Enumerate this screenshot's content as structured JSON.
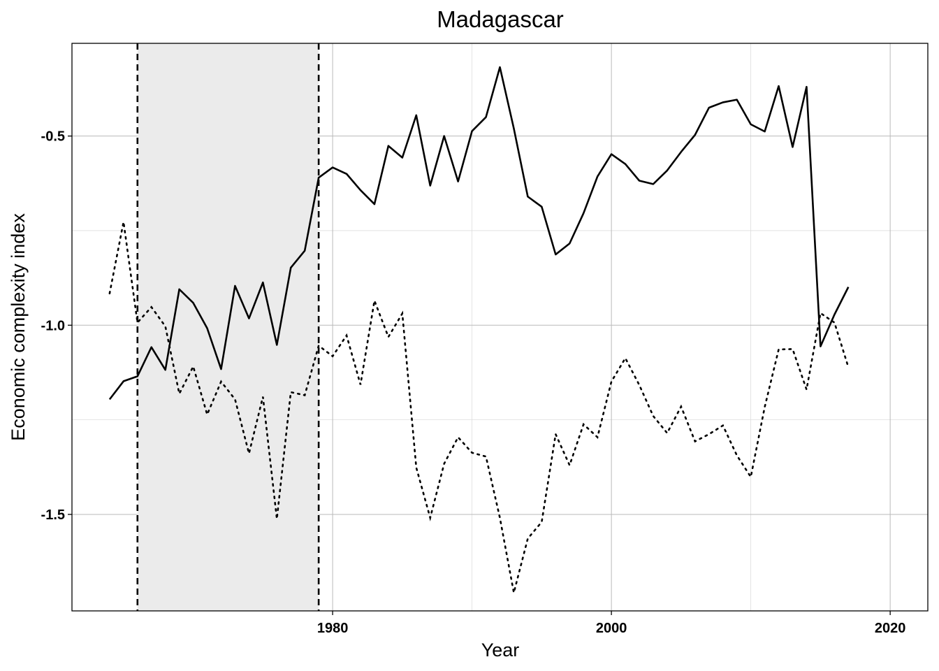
{
  "chart_data": {
    "type": "line",
    "title": "Madagascar",
    "xlabel": "Year",
    "ylabel": "Economic complexity index",
    "xlim": [
      1961.3,
      2022.7
    ],
    "ylim": [
      -1.755,
      -0.255
    ],
    "xticks": [
      1980,
      2000,
      2020
    ],
    "xtick_labels": [
      "1980",
      "2000",
      "2020"
    ],
    "yticks": [
      -0.5,
      -1.0,
      -1.5
    ],
    "ytick_labels": [
      "-0.5",
      "-1.0",
      "-1.5"
    ],
    "minor_xticks": [
      1970,
      1990,
      2010
    ],
    "minor_yticks": [
      -0.75,
      -1.25
    ],
    "shaded_region": [
      1966,
      1979
    ],
    "vertical_lines": [
      1966,
      1979
    ],
    "grid": true,
    "series": [
      {
        "name": "solid",
        "style": "solid",
        "x": [
          1964,
          1965,
          1966,
          1967,
          1968,
          1969,
          1970,
          1971,
          1972,
          1973,
          1974,
          1975,
          1976,
          1977,
          1978,
          1979,
          1980,
          1981,
          1982,
          1983,
          1984,
          1985,
          1986,
          1987,
          1988,
          1989,
          1990,
          1991,
          1992,
          1993,
          1994,
          1995,
          1996,
          1997,
          1998,
          1999,
          2000,
          2001,
          2002,
          2003,
          2004,
          2005,
          2006,
          2007,
          2008,
          2009,
          2010,
          2011,
          2012,
          2013,
          2014,
          2015,
          2016,
          2017
        ],
        "values": [
          -1.196,
          -1.148,
          -1.135,
          -1.058,
          -1.118,
          -0.905,
          -0.941,
          -1.008,
          -1.116,
          -0.896,
          -0.982,
          -0.887,
          -1.052,
          -0.848,
          -0.803,
          -0.61,
          -0.583,
          -0.6,
          -0.643,
          -0.68,
          -0.526,
          -0.557,
          -0.445,
          -0.631,
          -0.5,
          -0.62,
          -0.487,
          -0.45,
          -0.318,
          -0.48,
          -0.66,
          -0.687,
          -0.813,
          -0.784,
          -0.704,
          -0.607,
          -0.548,
          -0.574,
          -0.618,
          -0.627,
          -0.591,
          -0.542,
          -0.497,
          -0.425,
          -0.411,
          -0.404,
          -0.469,
          -0.488,
          -0.368,
          -0.529,
          -0.37,
          -1.056,
          -0.972,
          -0.899
        ]
      },
      {
        "name": "dotted",
        "style": "dotted",
        "x": [
          1964,
          1965,
          1966,
          1967,
          1968,
          1969,
          1970,
          1971,
          1972,
          1973,
          1974,
          1975,
          1976,
          1977,
          1978,
          1979,
          1980,
          1981,
          1982,
          1983,
          1984,
          1985,
          1986,
          1987,
          1988,
          1989,
          1990,
          1991,
          1992,
          1993,
          1994,
          1995,
          1996,
          1997,
          1998,
          1999,
          2000,
          2001,
          2002,
          2003,
          2004,
          2005,
          2006,
          2007,
          2008,
          2009,
          2010,
          2011,
          2012,
          2013,
          2014,
          2015,
          2016,
          2017
        ],
        "values": [
          -0.916,
          -0.727,
          -0.993,
          -0.952,
          -1.003,
          -1.181,
          -1.109,
          -1.236,
          -1.149,
          -1.196,
          -1.339,
          -1.189,
          -1.512,
          -1.177,
          -1.185,
          -1.054,
          -1.082,
          -1.027,
          -1.157,
          -0.935,
          -1.031,
          -0.969,
          -1.376,
          -1.509,
          -1.366,
          -1.296,
          -1.337,
          -1.347,
          -1.509,
          -1.707,
          -1.564,
          -1.52,
          -1.288,
          -1.37,
          -1.262,
          -1.296,
          -1.149,
          -1.087,
          -1.158,
          -1.24,
          -1.285,
          -1.215,
          -1.307,
          -1.288,
          -1.265,
          -1.344,
          -1.401,
          -1.216,
          -1.064,
          -1.063,
          -1.17,
          -0.968,
          -0.993,
          -1.111
        ]
      }
    ]
  }
}
